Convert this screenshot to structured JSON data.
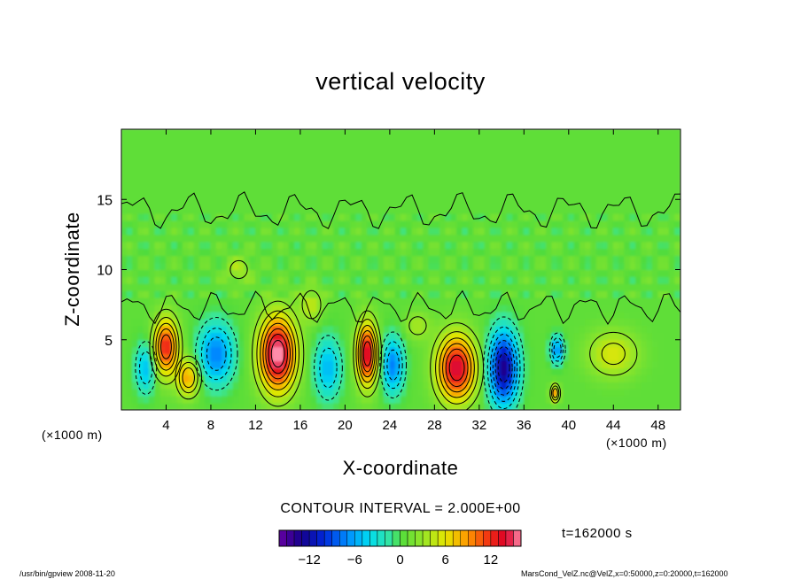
{
  "chart_data": {
    "type": "heatmap",
    "title": "vertical velocity",
    "xlabel": "X-coordinate",
    "ylabel": "Z-coordinate",
    "x_unit": "(×1000 m)",
    "y_unit": "(×1000 m)",
    "xlim": [
      0,
      50
    ],
    "ylim": [
      0,
      20
    ],
    "x_ticks": [
      4,
      8,
      12,
      16,
      20,
      24,
      28,
      32,
      36,
      40,
      44,
      48
    ],
    "y_ticks": [
      5,
      10,
      15
    ],
    "contour_interval_label": "CONTOUR INTERVAL = 2.000E+00",
    "time_label": "t=162000 s",
    "colorbar": {
      "range": [
        -16,
        16
      ],
      "ticks": [
        -12,
        -6,
        0,
        6,
        12
      ],
      "tick_labels": [
        "−12",
        "−6",
        "0",
        "6",
        "12"
      ]
    },
    "cells": [
      {
        "x": 4.0,
        "z": 4.5,
        "value": 12,
        "sx": 1.1,
        "sz": 2.0
      },
      {
        "x": 6.0,
        "z": 2.3,
        "value": 8,
        "sx": 1.0,
        "sz": 1.3
      },
      {
        "x": 2.2,
        "z": 3.0,
        "value": -6,
        "sx": 0.9,
        "sz": 1.8
      },
      {
        "x": 8.5,
        "z": 4.0,
        "value": -8,
        "sx": 1.6,
        "sz": 2.2
      },
      {
        "x": 14.0,
        "z": 4.0,
        "value": 16,
        "sx": 1.6,
        "sz": 2.6
      },
      {
        "x": 18.5,
        "z": 3.0,
        "value": -6,
        "sx": 1.2,
        "sz": 2.2
      },
      {
        "x": 22.0,
        "z": 4.0,
        "value": 14,
        "sx": 0.9,
        "sz": 2.2
      },
      {
        "x": 24.3,
        "z": 3.2,
        "value": -8,
        "sx": 1.0,
        "sz": 2.0
      },
      {
        "x": 30.0,
        "z": 3.0,
        "value": 14,
        "sx": 1.7,
        "sz": 2.3
      },
      {
        "x": 34.2,
        "z": 3.0,
        "value": -14,
        "sx": 1.3,
        "sz": 2.6
      },
      {
        "x": 39.0,
        "z": 4.3,
        "value": -8,
        "sx": 0.6,
        "sz": 1.0
      },
      {
        "x": 38.8,
        "z": 1.2,
        "value": 8,
        "sx": 0.4,
        "sz": 0.6
      },
      {
        "x": 44.0,
        "z": 4.0,
        "value": 5,
        "sx": 2.2,
        "sz": 1.6
      },
      {
        "x": 10.5,
        "z": 10.0,
        "value": 3,
        "sx": 1.2,
        "sz": 1.0
      },
      {
        "x": 17.0,
        "z": 7.5,
        "value": 4,
        "sx": 1.0,
        "sz": 1.2
      },
      {
        "x": 26.5,
        "z": 6.0,
        "value": 3,
        "sx": 1.2,
        "sz": 1.0
      }
    ]
  },
  "footer": {
    "left": "/usr/bin/gpview   2008-11-20",
    "right": "MarsCond_VelZ.nc@VelZ,x=0:50000,z=0:20000,t=162000"
  }
}
